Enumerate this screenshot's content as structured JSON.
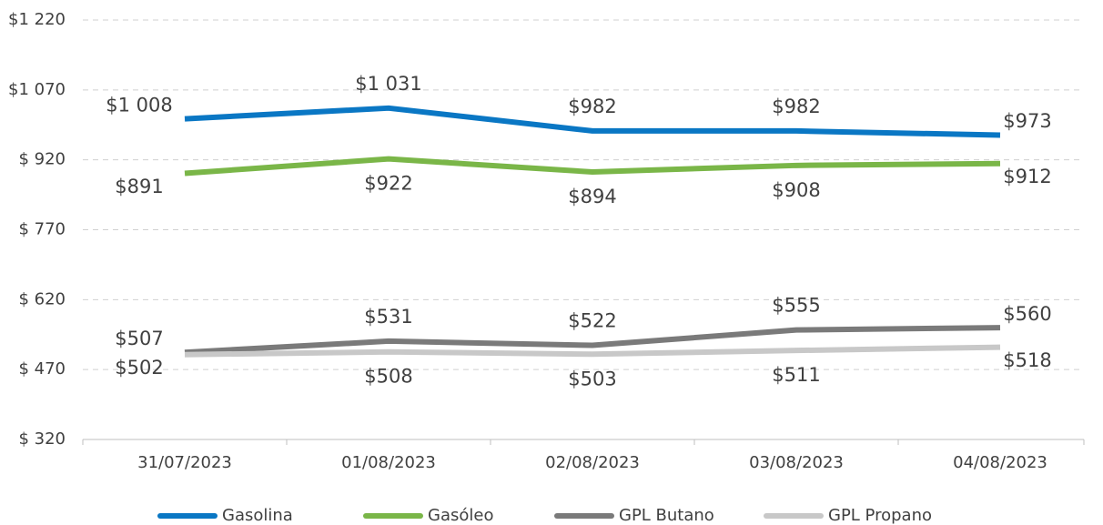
{
  "chart_data": {
    "type": "line",
    "categories": [
      "31/07/2023",
      "01/08/2023",
      "02/08/2023",
      "03/08/2023",
      "04/08/2023"
    ],
    "series": [
      {
        "name": "Gasolina",
        "color": "#0a77c4",
        "values": [
          1008,
          1031,
          982,
          982,
          973
        ],
        "value_labels": [
          "$1 008",
          "$1 031",
          "$982",
          "$982",
          "$973"
        ]
      },
      {
        "name": "Gasóleo",
        "color": "#7ab648",
        "values": [
          891,
          922,
          894,
          908,
          912
        ],
        "value_labels": [
          "$891",
          "$922",
          "$894",
          "$908",
          "$912"
        ]
      },
      {
        "name": "GPL Butano",
        "color": "#7a7a7a",
        "values": [
          507,
          531,
          522,
          555,
          560
        ],
        "value_labels": [
          "$507",
          "$531",
          "$522",
          "$555",
          "$560"
        ]
      },
      {
        "name": "GPL Propano",
        "color": "#c8c8c8",
        "values": [
          502,
          508,
          503,
          511,
          518
        ],
        "value_labels": [
          "$502",
          "$508",
          "$503",
          "$511",
          "$518"
        ]
      }
    ],
    "ylim": [
      320,
      1220
    ],
    "yticks": [
      {
        "value": 320,
        "label": "$ 320"
      },
      {
        "value": 470,
        "label": "$ 470"
      },
      {
        "value": 620,
        "label": "$ 620"
      },
      {
        "value": 770,
        "label": "$ 770"
      },
      {
        "value": 920,
        "label": "$ 920"
      },
      {
        "value": 1070,
        "label": "$1 070"
      },
      {
        "value": 1220,
        "label": "$1 220"
      }
    ],
    "grid": true,
    "legend": "bottom"
  }
}
